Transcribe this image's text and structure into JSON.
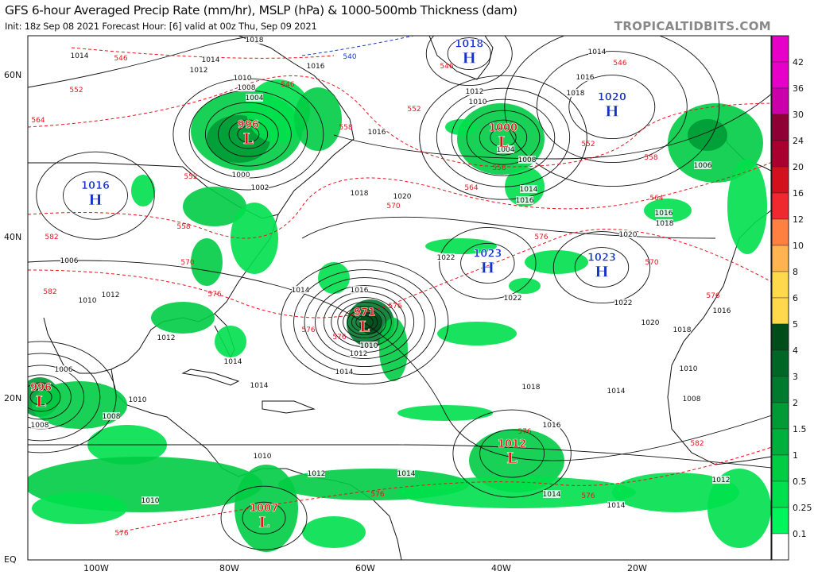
{
  "header": {
    "title": "GFS 6-hour Averaged Precip Rate (mm/hr), MSLP (hPa) & 1000-500mb Thickness (dam)",
    "subtitle": "Init: 18z Sep 08 2021   Forecast Hour: [6]   valid at 00z Thu, Sep 09 2021",
    "brand": "TROPICALTIDBITS.COM"
  },
  "axes": {
    "lat_labels": [
      "60N",
      "40N",
      "20N",
      "EQ"
    ],
    "lon_labels": [
      "100W",
      "80W",
      "60W",
      "40W",
      "20W"
    ]
  },
  "colorbar": {
    "labels": [
      "42",
      "36",
      "30",
      "24",
      "20",
      "16",
      "12",
      "10",
      "8",
      "6",
      "5",
      "4",
      "3",
      "2",
      "1.5",
      "1",
      "0.5",
      "0.25",
      "0.1"
    ],
    "colors": [
      "#e600c8",
      "#e600c8",
      "#cc00aa",
      "#8f0034",
      "#aa0030",
      "#d4101e",
      "#f02830",
      "#ff8040",
      "#ffb450",
      "#ffd84c",
      "#ffd84c",
      "#004d1a",
      "#006626",
      "#007a2e",
      "#009a36",
      "#00b03c",
      "#00cc44",
      "#00e04c",
      "#00f55a",
      "#ffffff"
    ]
  },
  "pressure_centers": [
    {
      "type": "H",
      "value": "1018",
      "lat": 62.8,
      "lon": -45
    },
    {
      "type": "L",
      "value": "996",
      "lat": 52.8,
      "lon": -77.5
    },
    {
      "type": "L",
      "value": "1000",
      "lat": 52.4,
      "lon": -40
    },
    {
      "type": "H",
      "value": "1020",
      "lat": 56.2,
      "lon": -24
    },
    {
      "type": "H",
      "value": "1016",
      "lat": 45.2,
      "lon": -100
    },
    {
      "type": "H",
      "value": "1023",
      "lat": 36.8,
      "lon": -42.3
    },
    {
      "type": "H",
      "value": "1023",
      "lat": 36.3,
      "lon": -25.5
    },
    {
      "type": "L",
      "value": "971",
      "lat": 29.5,
      "lon": -60.4
    },
    {
      "type": "L",
      "value": "996",
      "lat": 20.2,
      "lon": -108
    },
    {
      "type": "L",
      "value": "1012",
      "lat": 13.2,
      "lon": -38.7
    },
    {
      "type": "L",
      "value": "1007",
      "lat": 5.2,
      "lon": -75.2
    }
  ],
  "isobar_labels": [
    "1018",
    "1014",
    "1014",
    "1012",
    "1016",
    "1010",
    "1008",
    "1004",
    "1016",
    "1012",
    "1010",
    "1004",
    "1008",
    "1014",
    "1016",
    "1014",
    "1016",
    "1018",
    "1006",
    "1016",
    "1018",
    "1020",
    "1000",
    "1002",
    "1018",
    "1020",
    "1022",
    "1022",
    "1022",
    "1020",
    "1018",
    "1016",
    "1016",
    "1014",
    "1010",
    "1012",
    "1014",
    "1012",
    "1014",
    "1014",
    "1018",
    "1016",
    "1014",
    "1010",
    "1008",
    "1010",
    "1008",
    "1008",
    "1006",
    "1010",
    "1012",
    "1006",
    "1010",
    "1012",
    "1014",
    "1014",
    "1014",
    "1012",
    "1010"
  ],
  "thickness_labels": [
    "546",
    "540",
    "552",
    "546",
    "558",
    "552",
    "546",
    "558",
    "552",
    "546",
    "564",
    "564",
    "558",
    "564",
    "570",
    "576",
    "570",
    "576",
    "552",
    "558",
    "570",
    "576",
    "576",
    "576",
    "576",
    "576",
    "582",
    "582",
    "576",
    "576",
    "582",
    "576"
  ],
  "colors": {
    "isobar": "#111111",
    "thickness": "#e8141e",
    "thickness_540": "#1e3cc8",
    "high": "#1432c8",
    "low": "#e01010"
  }
}
